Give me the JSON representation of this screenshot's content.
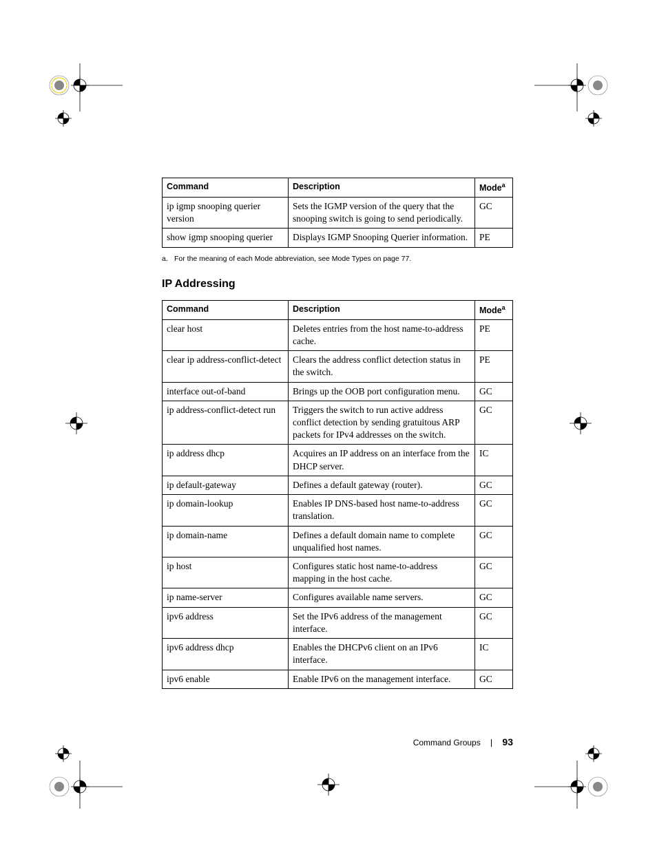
{
  "table1": {
    "headers": {
      "command": "Command",
      "description": "Description",
      "mode": "Mode",
      "mode_sup": "a"
    },
    "rows": [
      {
        "command": "ip igmp snooping querier version",
        "description": "Sets the IGMP version of the query that the snooping switch is going to send periodically.",
        "mode": "GC"
      },
      {
        "command": "show igmp snooping querier",
        "description": "Displays IGMP Snooping Querier information.",
        "mode": "PE"
      }
    ]
  },
  "footnote": {
    "letter": "a.",
    "text": "For the meaning of each Mode abbreviation, see Mode Types on page 77."
  },
  "section_heading": "IP Addressing",
  "table2": {
    "headers": {
      "command": "Command",
      "description": "Description",
      "mode": "Mode",
      "mode_sup": "a"
    },
    "rows": [
      {
        "command": "clear host",
        "description": "Deletes entries from the host name-to-address cache.",
        "mode": "PE"
      },
      {
        "command": "clear ip address-conflict-detect",
        "description": "Clears the address conflict detection status in the switch.",
        "mode": "PE"
      },
      {
        "command": "interface out-of-band",
        "description": "Brings up the OOB port configuration menu.",
        "mode": "GC"
      },
      {
        "command": "ip address-conflict-detect run",
        "description": "Triggers the switch to run active address conflict detection by sending gratuitous ARP packets for IPv4 addresses on the switch.",
        "mode": "GC"
      },
      {
        "command": "ip address dhcp",
        "description": "Acquires an IP address on an interface from the DHCP server.",
        "mode": "IC"
      },
      {
        "command": "ip default-gateway",
        "description": "Defines a default gateway (router).",
        "mode": "GC"
      },
      {
        "command": "ip domain-lookup",
        "description": "Enables IP DNS-based host name-to-address translation.",
        "mode": "GC"
      },
      {
        "command": "ip domain-name",
        "description": "Defines a default domain name to complete unqualified host names.",
        "mode": "GC"
      },
      {
        "command": "ip host",
        "description": "Configures static host name-to-address mapping in the host cache.",
        "mode": "GC"
      },
      {
        "command": "ip name-server",
        "description": "Configures available name servers.",
        "mode": "GC"
      },
      {
        "command": "ipv6 address",
        "description": "Set the IPv6 address of the management interface.",
        "mode": "GC"
      },
      {
        "command": "ipv6 address dhcp",
        "description": "Enables the DHCPv6 client on an IPv6 interface.",
        "mode": "IC"
      },
      {
        "command": "ipv6 enable",
        "description": "Enable IPv6 on the management interface.",
        "mode": "GC"
      }
    ]
  },
  "footer": {
    "section": "Command Groups",
    "page": "93"
  },
  "style": {
    "crop_mark_color": "#000000",
    "registration_colors": [
      "#00aeef",
      "#ec008c",
      "#fff200",
      "#000000"
    ]
  }
}
